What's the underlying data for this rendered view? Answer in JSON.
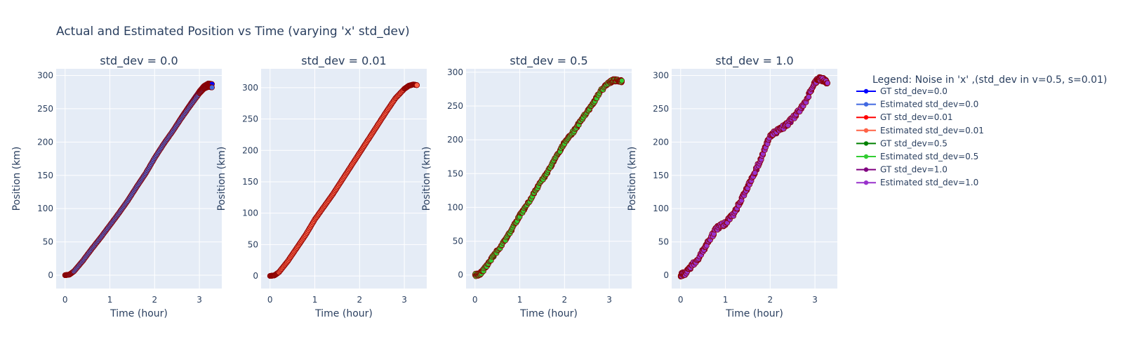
{
  "figure_title": "Actual and Estimated Position vs Time (varying 'x' std_dev)",
  "legend": {
    "title": "Legend: Noise in 'x' ,(std_dev in v=0.5, s=0.01)",
    "placement": "right",
    "items": [
      {
        "label": "GT std_dev=0.0",
        "color": "#0000ff"
      },
      {
        "label": "Estimated std_dev=0.0",
        "color": "#4169e1"
      },
      {
        "label": "GT std_dev=0.01",
        "color": "#ff0000"
      },
      {
        "label": "Estimated std_dev=0.01",
        "color": "#ff6347"
      },
      {
        "label": "GT std_dev=0.5",
        "color": "#008000"
      },
      {
        "label": "Estimated std_dev=0.5",
        "color": "#32cd32"
      },
      {
        "label": "GT std_dev=1.0",
        "color": "#800080"
      },
      {
        "label": "Estimated std_dev=1.0",
        "color": "#9932cc"
      }
    ]
  },
  "chart_data": [
    {
      "type": "line",
      "title": "std_dev = 0.0",
      "xlabel": "Time (hour)",
      "ylabel": "Position (km)",
      "xlim": [
        -0.2,
        3.5
      ],
      "ylim": [
        -20,
        310
      ],
      "xticks": [
        0,
        1,
        2,
        3
      ],
      "yticks": [
        0,
        50,
        100,
        150,
        200,
        250,
        300
      ],
      "grid": true,
      "series": [
        {
          "name": "GT std_dev=0.0",
          "color": "#0000ff",
          "edge": "#8b0000",
          "noise": 0,
          "x": [
            0,
            0.1,
            0.2,
            0.4,
            0.6,
            0.8,
            1.0,
            1.2,
            1.4,
            1.6,
            1.8,
            2.0,
            2.2,
            2.4,
            2.6,
            2.8,
            3.0,
            3.1,
            3.2,
            3.28
          ],
          "y": [
            0,
            1,
            6,
            22,
            40,
            57,
            75,
            93,
            112,
            133,
            153,
            176,
            197,
            216,
            237,
            257,
            276,
            284,
            288,
            287
          ]
        },
        {
          "name": "Estimated std_dev=0.0",
          "color": "#4169e1",
          "edge": "#8b0000",
          "noise": 0,
          "x": [
            0,
            0.1,
            0.2,
            0.4,
            0.6,
            0.8,
            1.0,
            1.2,
            1.4,
            1.6,
            1.8,
            2.0,
            2.2,
            2.4,
            2.6,
            2.8,
            3.0,
            3.1,
            3.2,
            3.28
          ],
          "y": [
            0,
            1,
            6,
            22,
            40,
            57,
            75,
            93,
            112,
            133,
            153,
            176,
            197,
            216,
            236,
            255,
            273,
            280,
            283,
            282
          ]
        }
      ]
    },
    {
      "type": "line",
      "title": "std_dev = 0.01",
      "xlabel": "Time (hour)",
      "ylabel": "Position (km)",
      "xlim": [
        -0.2,
        3.5
      ],
      "ylim": [
        -20,
        330
      ],
      "xticks": [
        0,
        1,
        2,
        3
      ],
      "yticks": [
        0,
        50,
        100,
        150,
        200,
        250,
        300
      ],
      "grid": true,
      "series": [
        {
          "name": "GT std_dev=0.01",
          "color": "#ff0000",
          "edge": "#8b0000",
          "noise": 0,
          "x": [
            0,
            0.1,
            0.2,
            0.4,
            0.6,
            0.8,
            1.0,
            1.2,
            1.4,
            1.6,
            1.8,
            2.0,
            2.2,
            2.4,
            2.6,
            2.8,
            3.0,
            3.1,
            3.2,
            3.28
          ],
          "y": [
            0,
            1,
            6,
            24,
            45,
            66,
            90,
            110,
            130,
            152,
            174,
            196,
            218,
            240,
            262,
            283,
            298,
            303,
            305,
            304
          ]
        },
        {
          "name": "Estimated std_dev=0.01",
          "color": "#ff6347",
          "edge": "#8b0000",
          "noise": 0,
          "x": [
            0,
            0.1,
            0.2,
            0.4,
            0.6,
            0.8,
            1.0,
            1.2,
            1.4,
            1.6,
            1.8,
            2.0,
            2.2,
            2.4,
            2.6,
            2.8,
            3.0,
            3.1,
            3.2,
            3.28
          ],
          "y": [
            0,
            1,
            6,
            24,
            45,
            66,
            90,
            110,
            130,
            152,
            174,
            196,
            218,
            240,
            262,
            283,
            298,
            303,
            305,
            304
          ]
        }
      ]
    },
    {
      "type": "line",
      "title": "std_dev = 0.5",
      "xlabel": "Time (hour)",
      "ylabel": "Position (km)",
      "xlim": [
        -0.2,
        3.5
      ],
      "ylim": [
        -20,
        305
      ],
      "xticks": [
        0,
        1,
        2,
        3
      ],
      "yticks": [
        0,
        50,
        100,
        150,
        200,
        250,
        300
      ],
      "grid": true,
      "series": [
        {
          "name": "GT std_dev=0.5",
          "color": "#008000",
          "edge": "#8b0000",
          "noise": 2,
          "x": [
            0,
            0.1,
            0.2,
            0.4,
            0.6,
            0.8,
            1.0,
            1.2,
            1.4,
            1.6,
            1.8,
            2.0,
            2.2,
            2.4,
            2.6,
            2.8,
            3.0,
            3.1,
            3.2,
            3.28
          ],
          "y": [
            0,
            1,
            8,
            27,
            45,
            65,
            88,
            108,
            130,
            150,
            173,
            196,
            212,
            232,
            250,
            272,
            285,
            288,
            288,
            286
          ]
        },
        {
          "name": "Estimated std_dev=0.5",
          "color": "#32cd32",
          "edge": "#8b0000",
          "noise": 2,
          "x": [
            0,
            0.1,
            0.2,
            0.4,
            0.6,
            0.8,
            1.0,
            1.2,
            1.4,
            1.6,
            1.8,
            2.0,
            2.2,
            2.4,
            2.6,
            2.8,
            3.0,
            3.1,
            3.2,
            3.28
          ],
          "y": [
            0,
            1,
            8,
            27,
            45,
            65,
            88,
            108,
            130,
            150,
            173,
            196,
            212,
            232,
            250,
            272,
            285,
            288,
            288,
            286
          ]
        }
      ]
    },
    {
      "type": "line",
      "title": "std_dev = 1.0",
      "xlabel": "Time (hour)",
      "ylabel": "Position (km)",
      "xlim": [
        -0.2,
        3.5
      ],
      "ylim": [
        -20,
        310
      ],
      "xticks": [
        0,
        1,
        2,
        3
      ],
      "yticks": [
        0,
        50,
        100,
        150,
        200,
        250,
        300
      ],
      "grid": true,
      "series": [
        {
          "name": "GT std_dev=1.0",
          "color": "#800080",
          "edge": "#8b0000",
          "noise": 3,
          "x": [
            0,
            0.1,
            0.2,
            0.4,
            0.6,
            0.8,
            1.0,
            1.2,
            1.4,
            1.6,
            1.8,
            2.0,
            2.2,
            2.4,
            2.6,
            2.8,
            3.0,
            3.1,
            3.2,
            3.28
          ],
          "y": [
            0,
            3,
            10,
            26,
            48,
            70,
            78,
            93,
            120,
            146,
            176,
            210,
            218,
            228,
            243,
            262,
            290,
            295,
            293,
            290
          ]
        },
        {
          "name": "Estimated std_dev=1.0",
          "color": "#9932cc",
          "edge": "#8b0000",
          "noise": 3,
          "x": [
            0,
            0.1,
            0.2,
            0.4,
            0.6,
            0.8,
            1.0,
            1.2,
            1.4,
            1.6,
            1.8,
            2.0,
            2.2,
            2.4,
            2.6,
            2.8,
            3.0,
            3.1,
            3.2,
            3.28
          ],
          "y": [
            0,
            3,
            10,
            26,
            48,
            70,
            78,
            93,
            120,
            146,
            176,
            210,
            218,
            228,
            243,
            262,
            290,
            295,
            293,
            290
          ]
        }
      ]
    }
  ]
}
